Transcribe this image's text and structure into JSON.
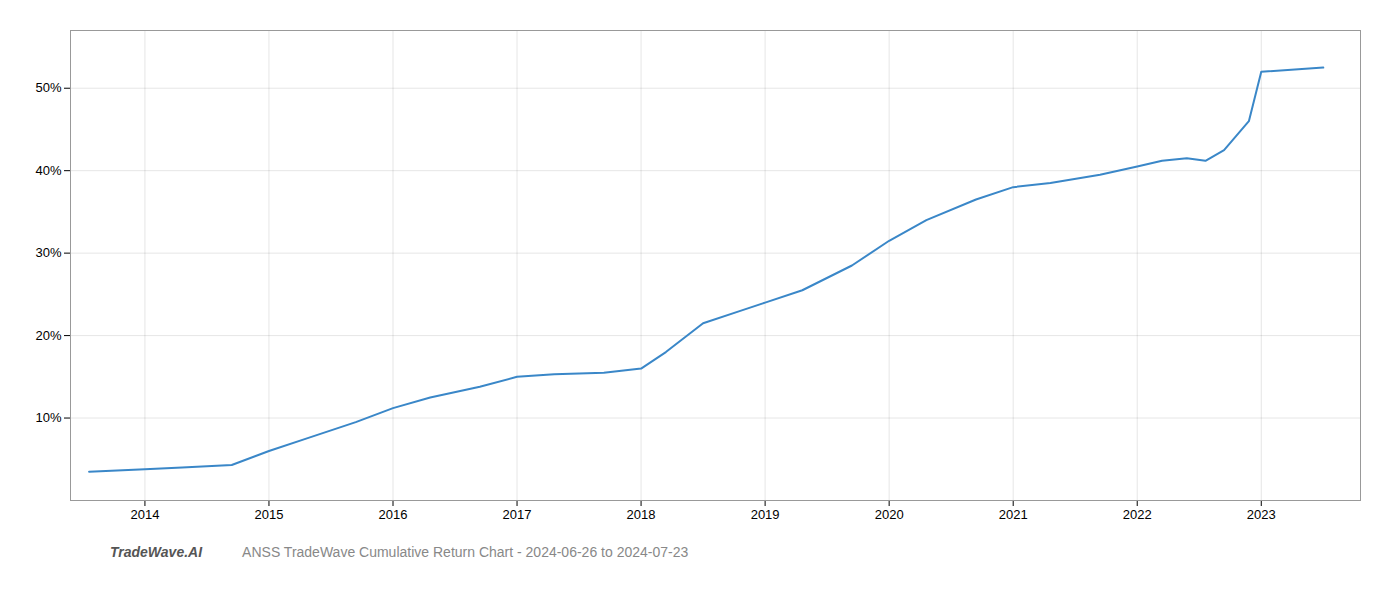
{
  "chart_data": {
    "type": "line",
    "x": [
      2013.55,
      2014.0,
      2014.3,
      2014.7,
      2015.0,
      2015.3,
      2015.7,
      2016.0,
      2016.3,
      2016.7,
      2017.0,
      2017.3,
      2017.7,
      2018.0,
      2018.2,
      2018.5,
      2018.8,
      2019.0,
      2019.3,
      2019.7,
      2020.0,
      2020.3,
      2020.7,
      2021.0,
      2021.3,
      2021.7,
      2022.0,
      2022.2,
      2022.4,
      2022.55,
      2022.7,
      2022.9,
      2023.0,
      2023.5
    ],
    "values": [
      3.5,
      3.8,
      4.0,
      4.3,
      6.0,
      7.5,
      9.5,
      11.2,
      12.5,
      13.8,
      15.0,
      15.3,
      15.5,
      16.0,
      18.0,
      21.5,
      23.0,
      24.0,
      25.5,
      28.5,
      31.5,
      34.0,
      36.5,
      38.0,
      38.5,
      39.5,
      40.5,
      41.2,
      41.5,
      41.2,
      42.5,
      46.0,
      52.0,
      52.5
    ],
    "color": "#3a87c8",
    "xlim": [
      2013.4,
      2023.8
    ],
    "xticks": [
      2014,
      2015,
      2016,
      2017,
      2018,
      2019,
      2020,
      2021,
      2022,
      2023
    ],
    "ylim": [
      0,
      57
    ],
    "yticks": [
      {
        "value": 10,
        "label": "10%"
      },
      {
        "value": 20,
        "label": "20%"
      },
      {
        "value": 30,
        "label": "30%"
      },
      {
        "value": 40,
        "label": "40%"
      },
      {
        "value": 50,
        "label": "50%"
      }
    ],
    "grid": true,
    "annotations": [
      "TradeWave.AI",
      "ANSS TradeWave Cumulative Return Chart - 2024-06-26 to 2024-07-23"
    ]
  }
}
